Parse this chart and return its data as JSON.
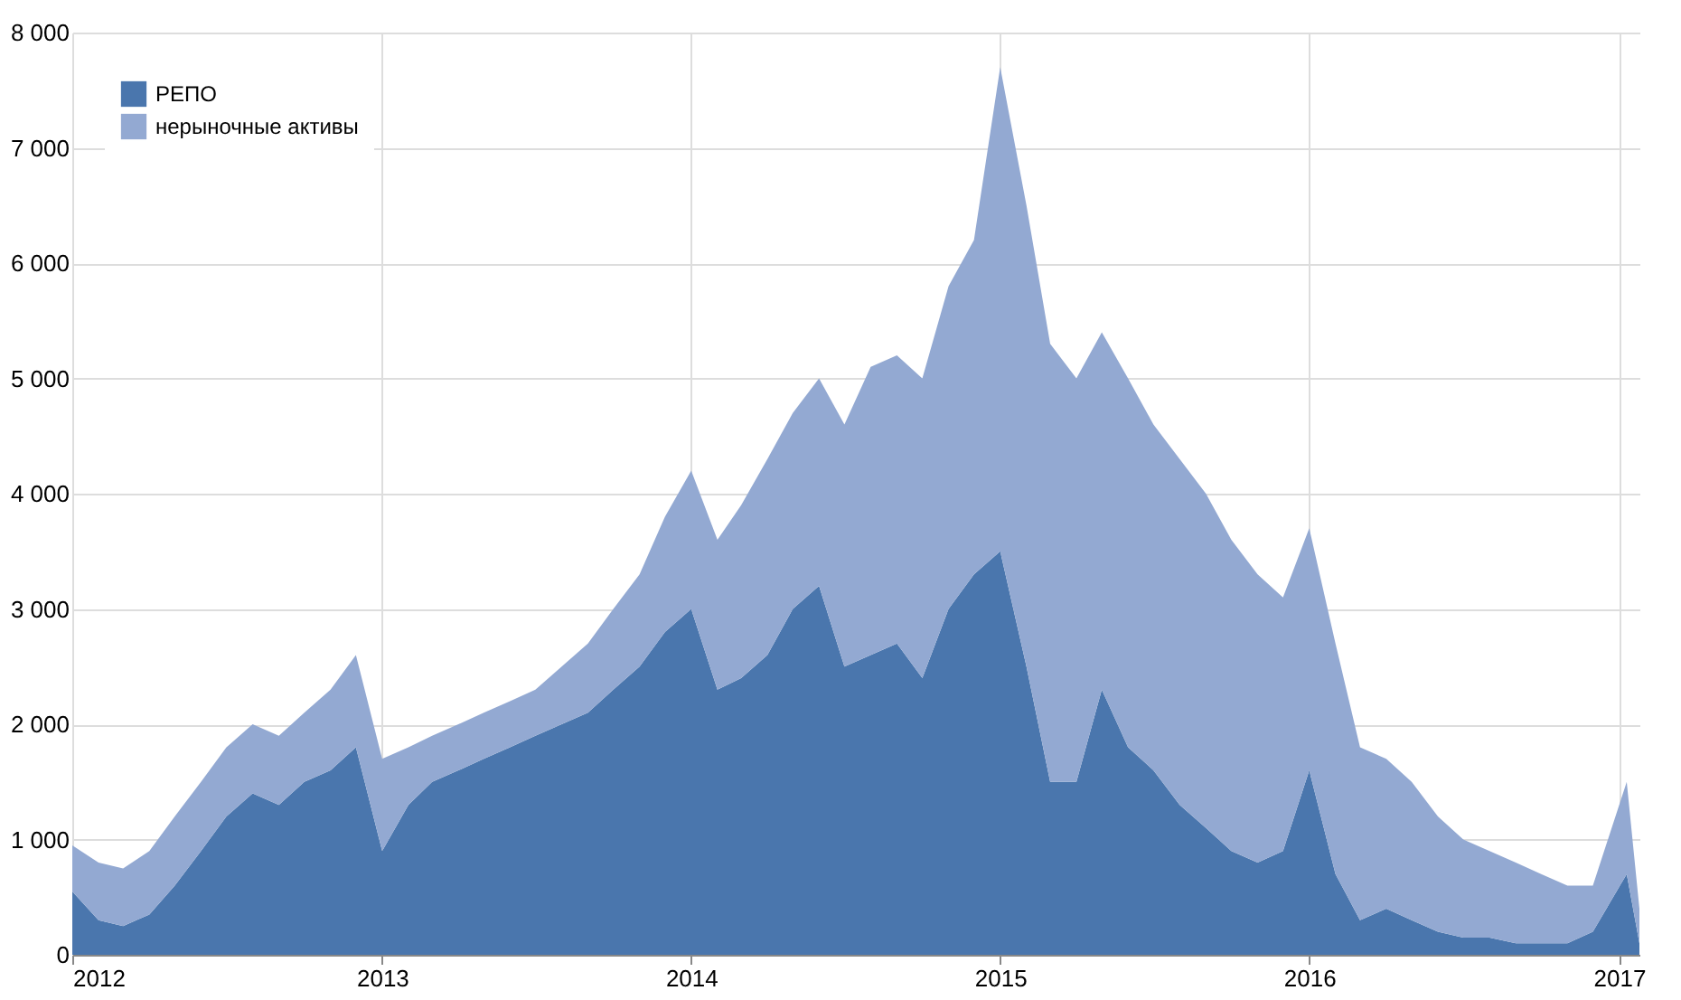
{
  "chart_data": {
    "type": "area",
    "stacked": true,
    "grid": true,
    "legend": "top left",
    "x": [
      "2012-01",
      "2012-02",
      "2012-03",
      "2012-04",
      "2012-05",
      "2012-06",
      "2012-07",
      "2012-08",
      "2012-09",
      "2012-10",
      "2012-11",
      "2012-12",
      "2013-01",
      "2013-02",
      "2013-03",
      "2013-04",
      "2013-05",
      "2013-06",
      "2013-07",
      "2013-08",
      "2013-09",
      "2013-10",
      "2013-11",
      "2013-12",
      "2014-01",
      "2014-02",
      "2014-03",
      "2014-04",
      "2014-05",
      "2014-06",
      "2014-07",
      "2014-08",
      "2014-09",
      "2014-10",
      "2014-11",
      "2014-12",
      "2015-01",
      "2015-02",
      "2015-03",
      "2015-04",
      "2015-05",
      "2015-06",
      "2015-07",
      "2015-08",
      "2015-09",
      "2015-10",
      "2015-11",
      "2015-12",
      "2016-01",
      "2016-02",
      "2016-03",
      "2016-04",
      "2016-05",
      "2016-06",
      "2016-07",
      "2016-08",
      "2016-09",
      "2016-10",
      "2016-11",
      "2016-12",
      "2017-01-10",
      "2017-01-25"
    ],
    "series": [
      {
        "name": "РЕПО",
        "color": "#4a76ad",
        "values": [
          550,
          300,
          250,
          350,
          600,
          900,
          1200,
          1400,
          1300,
          1500,
          1600,
          1800,
          900,
          1300,
          1500,
          1600,
          1700,
          1800,
          1900,
          2000,
          2100,
          2300,
          2500,
          2800,
          3000,
          2300,
          2400,
          2600,
          3000,
          3200,
          2500,
          2600,
          2700,
          2400,
          3000,
          3300,
          3500,
          2500,
          1500,
          1500,
          2300,
          1800,
          1600,
          1300,
          1100,
          900,
          800,
          900,
          1600,
          700,
          300,
          400,
          300,
          200,
          150,
          150,
          100,
          100,
          100,
          200,
          700,
          100
        ]
      },
      {
        "name": "нерыночные активы",
        "color": "#93a9d2",
        "values": [
          400,
          500,
          500,
          550,
          600,
          600,
          600,
          600,
          600,
          600,
          700,
          800,
          800,
          500,
          400,
          400,
          400,
          400,
          400,
          500,
          600,
          700,
          800,
          1000,
          1200,
          1300,
          1500,
          1700,
          1700,
          1800,
          2100,
          2500,
          2500,
          2600,
          2800,
          2900,
          4200,
          4000,
          3800,
          3500,
          3100,
          3200,
          3000,
          3000,
          2900,
          2700,
          2500,
          2200,
          2100,
          2000,
          1500,
          1300,
          1200,
          1000,
          850,
          750,
          700,
          600,
          500,
          400,
          800,
          300
        ]
      }
    ],
    "xlim": [
      "2012",
      "2017-01-25"
    ],
    "xticks": [
      "2012",
      "2013",
      "2014",
      "2015",
      "2016",
      "2017"
    ],
    "ylim": [
      0,
      8000
    ],
    "yticks": [
      0,
      {
        "value": 1000,
        "label": "1 000"
      },
      {
        "value": 2000,
        "label": "2 000"
      },
      {
        "value": 3000,
        "label": "3 000"
      },
      {
        "value": 4000,
        "label": "4 000"
      },
      {
        "value": 5000,
        "label": "5 000"
      },
      {
        "value": 6000,
        "label": "6 000"
      },
      {
        "value": 7000,
        "label": "7 000"
      },
      {
        "value": 8000,
        "label": "8 000"
      }
    ]
  }
}
